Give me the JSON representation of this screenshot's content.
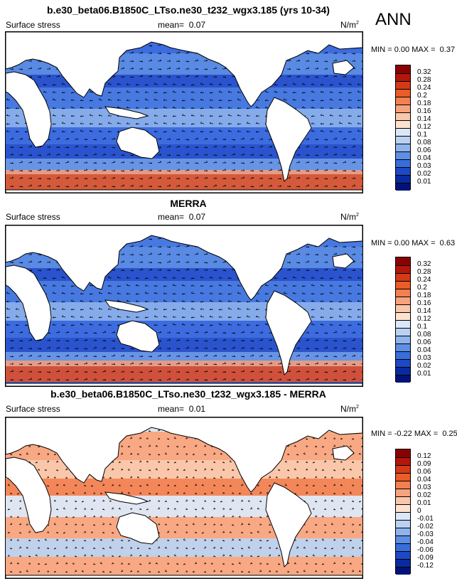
{
  "season": "ANN",
  "panels": [
    {
      "title": "b.e30_beta06.B1850C_LTso.ne30_t232_wgx3.185 (yrs 10-34)",
      "left_label": "Surface stress",
      "mean_label": "mean=",
      "mean_value": "0.07",
      "units": "N/m",
      "units_sup": "2",
      "min_label": "MIN =",
      "min_value": "0.00",
      "max_label": "MAX =",
      "max_value": "0.37",
      "colorbar": {
        "levels": [
          "0.32",
          "0.28",
          "0.24",
          "0.2",
          "0.18",
          "0.16",
          "0.14",
          "0.12",
          "0.1",
          "0.08",
          "0.06",
          "0.04",
          "0.03",
          "0.02",
          "0.01"
        ],
        "colors": [
          "#8b0000",
          "#b3160c",
          "#d43a16",
          "#ea5c2a",
          "#f28050",
          "#f7a47e",
          "#fbc7aa",
          "#fde3cf",
          "#dce8f8",
          "#b8d2f2",
          "#8fb4ec",
          "#5e8fe6",
          "#3a6ddc",
          "#1c49c6",
          "#0b2aa0",
          "#001476"
        ]
      }
    },
    {
      "title": "MERRA",
      "left_label": "Surface stress",
      "mean_label": "mean=",
      "mean_value": "0.07",
      "units": "N/m",
      "units_sup": "2",
      "min_label": "MIN =",
      "min_value": "0.00",
      "max_label": "MAX =",
      "max_value": "0.63",
      "colorbar": {
        "levels": [
          "0.32",
          "0.28",
          "0.24",
          "0.2",
          "0.18",
          "0.16",
          "0.14",
          "0.12",
          "0.1",
          "0.08",
          "0.06",
          "0.04",
          "0.03",
          "0.02",
          "0.01"
        ],
        "colors": [
          "#8b0000",
          "#b3160c",
          "#d43a16",
          "#ea5c2a",
          "#f28050",
          "#f7a47e",
          "#fbc7aa",
          "#fde3cf",
          "#dce8f8",
          "#b8d2f2",
          "#8fb4ec",
          "#5e8fe6",
          "#3a6ddc",
          "#1c49c6",
          "#0b2aa0",
          "#001476"
        ]
      }
    },
    {
      "title": "b.e30_beta06.B1850C_LTso.ne30_t232_wgx3.185 - MERRA",
      "left_label": "Surface stress",
      "mean_label": "mean=",
      "mean_value": "0.01",
      "units": "N/m",
      "units_sup": "2",
      "min_label": "MIN =",
      "min_value": "-0.22",
      "max_label": "MAX =",
      "max_value": "0.25",
      "colorbar": {
        "levels": [
          "0.12",
          "0.09",
          "0.06",
          "0.04",
          "0.03",
          "0.02",
          "0.01",
          "0",
          "-0.01",
          "-0.02",
          "-0.03",
          "-0.04",
          "-0.06",
          "-0.09",
          "-0.12"
        ],
        "colors": [
          "#8b0000",
          "#b3160c",
          "#d43a16",
          "#ea5c2a",
          "#f28050",
          "#f7a47e",
          "#fbc7aa",
          "#fde3cf",
          "#dce8f8",
          "#b8d2f2",
          "#8fb4ec",
          "#5e8fe6",
          "#3a6ddc",
          "#1c49c6",
          "#0b2aa0",
          "#001476"
        ]
      }
    }
  ]
}
